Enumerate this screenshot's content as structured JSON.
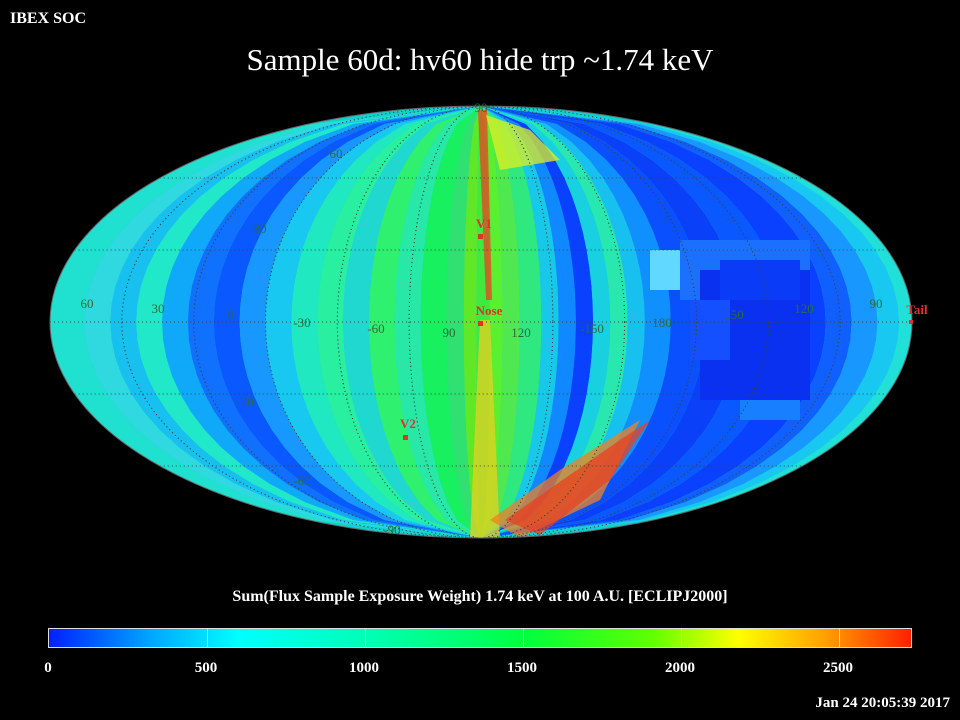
{
  "header": {
    "org": "IBEX SOC",
    "title": "Sample 60d: hv60 hide trp ~1.74 keV"
  },
  "map": {
    "projection": "mollweide",
    "lat_labels": [
      "90",
      "60",
      "30",
      "-30",
      "-60",
      "-90"
    ],
    "lon_labels": [
      "60",
      "30",
      "0",
      "-30",
      "-60",
      "90",
      "120",
      "-150",
      "180",
      "150",
      "120",
      "90"
    ],
    "markers": [
      {
        "name": "V1",
        "color": "#e03030"
      },
      {
        "name": "Nose",
        "color": "#e03030"
      },
      {
        "name": "V2",
        "color": "#e03030"
      },
      {
        "name": "Tail",
        "color": "#e03030"
      }
    ],
    "graticule_color": "#404040"
  },
  "colorbar": {
    "title": "Sum(Flux Sample Exposure Weight)  1.74 keV at 100 A.U. [ECLIPJ2000]",
    "ticks": [
      "0",
      "500",
      "1000",
      "1500",
      "2000",
      "2500"
    ],
    "range": [
      0,
      2750
    ],
    "colors": [
      "#0020ff",
      "#00a8ff",
      "#00ffff",
      "#00ffb0",
      "#00ff40",
      "#60ff00",
      "#ffff00",
      "#ffa000",
      "#ff2000"
    ]
  },
  "footer": {
    "timestamp": "Jan 24 20:05:39 2017"
  }
}
